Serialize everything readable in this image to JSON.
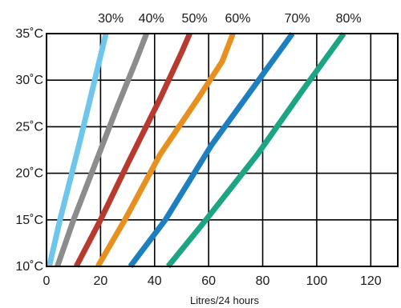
{
  "chart_data": {
    "type": "line",
    "title": "",
    "xlabel": "Litres/24 hours",
    "ylabel": "",
    "xlim": [
      0,
      130
    ],
    "ylim": [
      10,
      35
    ],
    "x_ticks": [
      0,
      20,
      40,
      60,
      80,
      100,
      120
    ],
    "x_tick_labels": [
      "0",
      "20",
      "40",
      "60",
      "80",
      "100",
      "120"
    ],
    "y_ticks": [
      10,
      15,
      20,
      25,
      30,
      35
    ],
    "y_tick_labels": [
      "10˚C",
      "15˚C",
      "20˚C",
      "25˚C",
      "30˚C",
      "35˚C"
    ],
    "grid": true,
    "legend": "series labels printed above the top edge of the plot",
    "series": [
      {
        "name": "30%",
        "color": "#6ec6ec",
        "points": [
          [
            1,
            10
          ],
          [
            5,
            15
          ],
          [
            12,
            23
          ],
          [
            17,
            29
          ],
          [
            22,
            35
          ]
        ]
      },
      {
        "name": "40%",
        "color": "#8c8c8c",
        "points": [
          [
            4,
            10
          ],
          [
            10,
            15
          ],
          [
            18,
            21
          ],
          [
            26,
            27
          ],
          [
            33,
            32
          ],
          [
            37,
            35
          ]
        ]
      },
      {
        "name": "50%",
        "color": "#b83a2f",
        "points": [
          [
            11,
            10
          ],
          [
            20,
            15
          ],
          [
            30,
            21
          ],
          [
            42,
            28
          ],
          [
            50,
            33
          ],
          [
            53,
            35
          ]
        ]
      },
      {
        "name": "60%",
        "color": "#e8901f",
        "points": [
          [
            19,
            10
          ],
          [
            29,
            15
          ],
          [
            42,
            22
          ],
          [
            56,
            28
          ],
          [
            65,
            32
          ],
          [
            69,
            35
          ]
        ]
      },
      {
        "name": "70%",
        "color": "#1b7fc0",
        "points": [
          [
            31,
            10
          ],
          [
            44,
            15
          ],
          [
            61,
            23
          ],
          [
            76,
            29
          ],
          [
            91,
            35
          ]
        ]
      },
      {
        "name": "80%",
        "color": "#1ba582",
        "points": [
          [
            45,
            10
          ],
          [
            59,
            15
          ],
          [
            78,
            22
          ],
          [
            95,
            29
          ],
          [
            110,
            35
          ]
        ]
      }
    ]
  }
}
